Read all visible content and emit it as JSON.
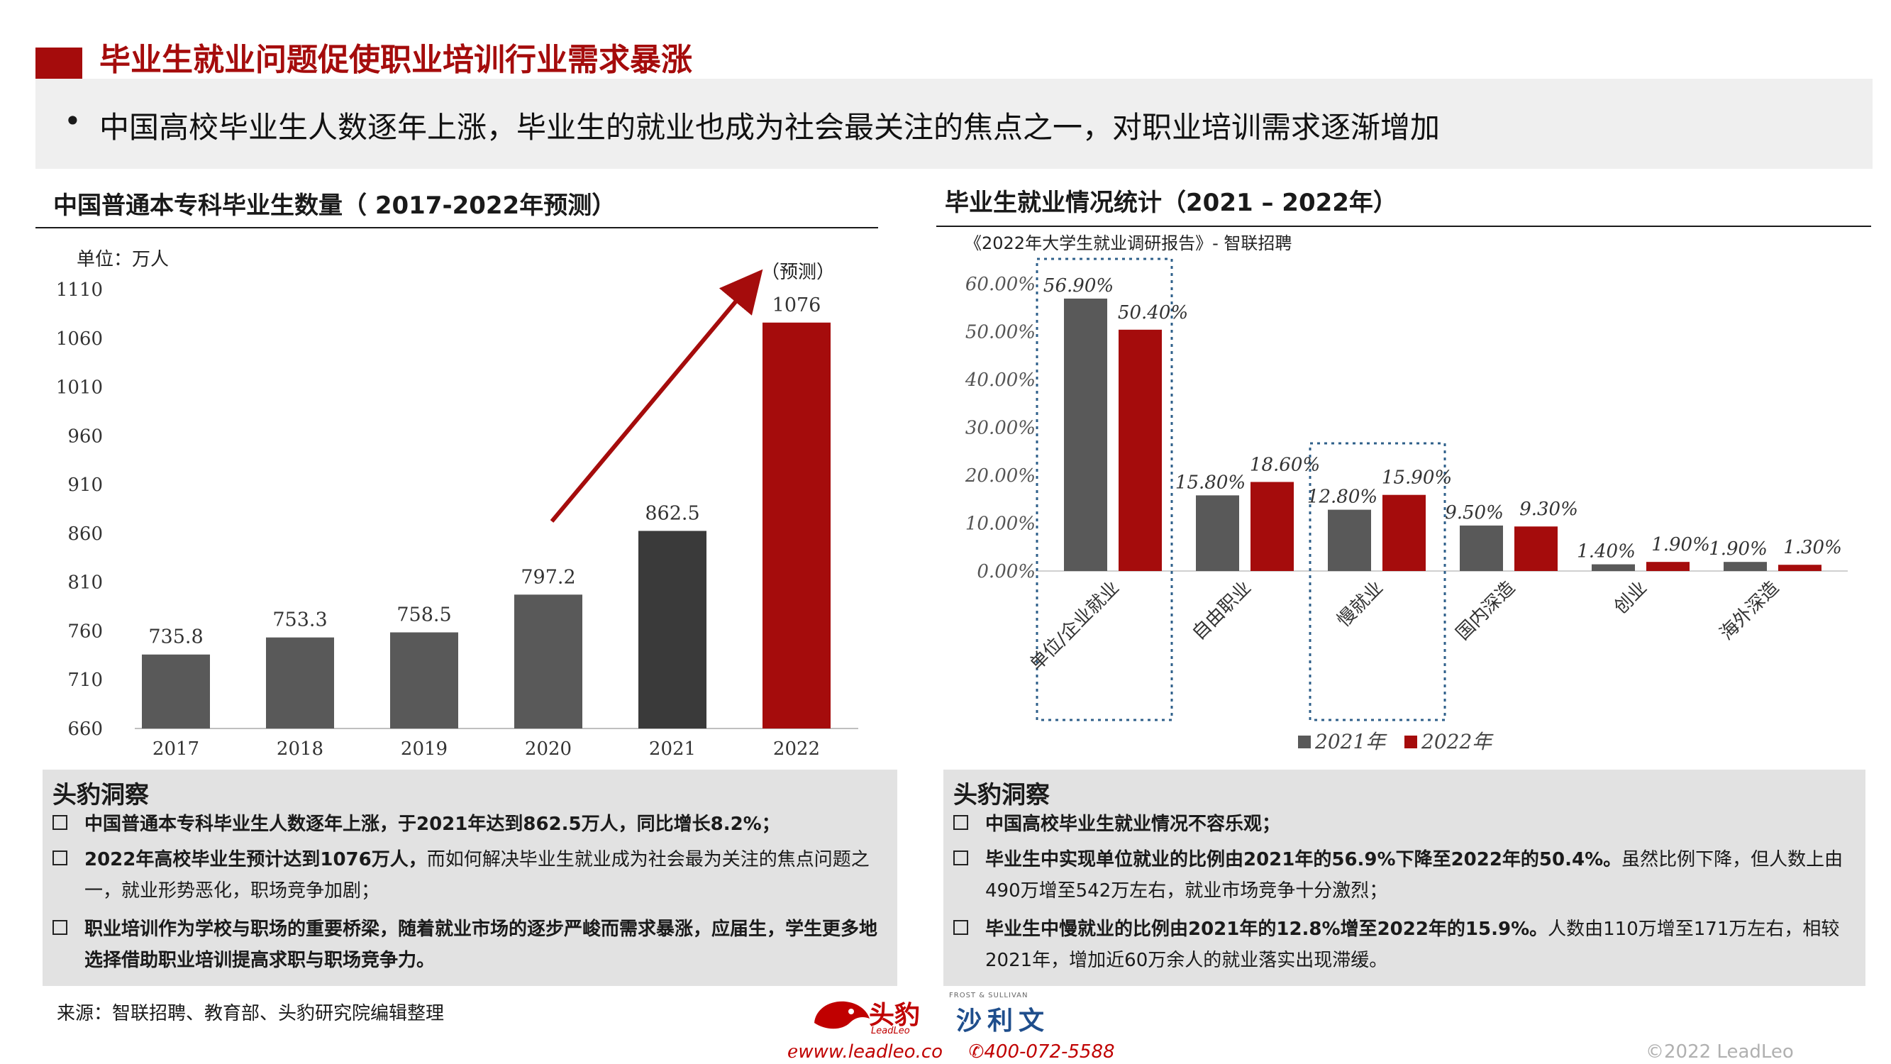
{
  "header": {
    "title": "毕业生就业问题促使职业培训行业需求暴涨",
    "bullet": "中国高校毕业生人数逐年上涨，毕业生的就业也成为社会最关注的焦点之一，对职业培训需求逐渐增加"
  },
  "left_section": {
    "title": "中国普通本专科毕业生数量（ 2017-2022年预测）",
    "unit": "单位：万人",
    "forecast_label": "（预测）"
  },
  "right_section": {
    "title": "毕业生就业情况统计（2021 – 2022年）",
    "source_note": "《2022年大学生就业调研报告》- 智联招聘"
  },
  "chart_data": [
    {
      "type": "bar",
      "categories": [
        "2017",
        "2018",
        "2019",
        "2020",
        "2021",
        "2022"
      ],
      "values": [
        735.8,
        753.3,
        758.5,
        797.2,
        862.5,
        1076
      ],
      "value_labels": [
        "735.8",
        "753.3",
        "758.5",
        "797.2",
        "862.5",
        "1076"
      ],
      "yticks": [
        "660",
        "710",
        "760",
        "810",
        "860",
        "910",
        "960",
        "1010",
        "1060",
        "1110"
      ],
      "ylim": [
        660,
        1110
      ],
      "bar_colors": [
        "#595959",
        "#595959",
        "#595959",
        "#595959",
        "#3a3a3a",
        "#a50c0c"
      ],
      "annotation": "（预测）"
    },
    {
      "type": "bar",
      "categories": [
        "单位/企业就业",
        "自由职业",
        "慢就业",
        "国内深造",
        "创业",
        "海外深造"
      ],
      "series": [
        {
          "name": "2021年",
          "values": [
            56.9,
            15.8,
            12.8,
            9.5,
            1.4,
            1.9
          ],
          "labels": [
            "56.90%",
            "15.80%",
            "12.80%",
            "9.50%",
            "1.40%",
            "1.90%"
          ],
          "color": "#595959"
        },
        {
          "name": "2022年",
          "values": [
            50.4,
            18.6,
            15.9,
            9.3,
            1.9,
            1.3
          ],
          "labels": [
            "50.40%",
            "18.60%",
            "15.90%",
            "9.30%",
            "1.90%",
            "1.30%"
          ],
          "color": "#a50c0c"
        }
      ],
      "yticks": [
        "0.00%",
        "10.00%",
        "20.00%",
        "30.00%",
        "40.00%",
        "50.00%",
        "60.00%"
      ],
      "ylim": [
        0,
        60
      ],
      "legend": "bottom"
    }
  ],
  "left_insight": {
    "heading": "头豹洞察",
    "items": [
      {
        "bold": "中国普通本专科毕业生人数逐年上涨，于2021年达到862.5万人，同比增长8.2%；",
        "rest": ""
      },
      {
        "bold": "2022年高校毕业生预计达到1076万人，",
        "rest": "而如何解决毕业生就业成为社会最为关注的焦点问题之一，就业形势恶化，职场竞争加剧；"
      },
      {
        "bold": "职业培训作为学校与职场的重要桥梁，随着就业市场的逐步严峻而需求暴涨，应届生，学生更多地选择借助职业培训提高求职与职场竞争力。",
        "rest": ""
      }
    ]
  },
  "right_insight": {
    "heading": "头豹洞察",
    "items": [
      {
        "bold": "中国高校毕业生就业情况不容乐观；",
        "rest": ""
      },
      {
        "bold": "毕业生中实现单位就业的比例由2021年的56.9%下降至2022年的50.4%。",
        "rest": "虽然比例下降，但人数上由490万增至542万左右，就业市场竞争十分激烈；"
      },
      {
        "bold": "毕业生中慢就业的比例由2021年的12.8%增至2022年的15.9%。",
        "rest": "人数由110万增至171万左右，相较2021年，增加近60万余人的就业落实出现滞缓。"
      }
    ]
  },
  "footer": {
    "source": "来源：智联招聘、教育部、头豹研究院编辑整理",
    "logo_leadleo_cn": "头豹",
    "logo_leadleo_en": "LeadLeo",
    "logo_fs_small": "FROST & SULLIVAN",
    "logo_fs_cn": "沙利文",
    "website": "www.leadleo.co",
    "phone": "400-072-5588",
    "copyright": "©2022 LeadLeo"
  },
  "colors": {
    "accent": "#a50c0c",
    "gray_bar": "#595959",
    "dark_bar": "#3a3a3a"
  }
}
